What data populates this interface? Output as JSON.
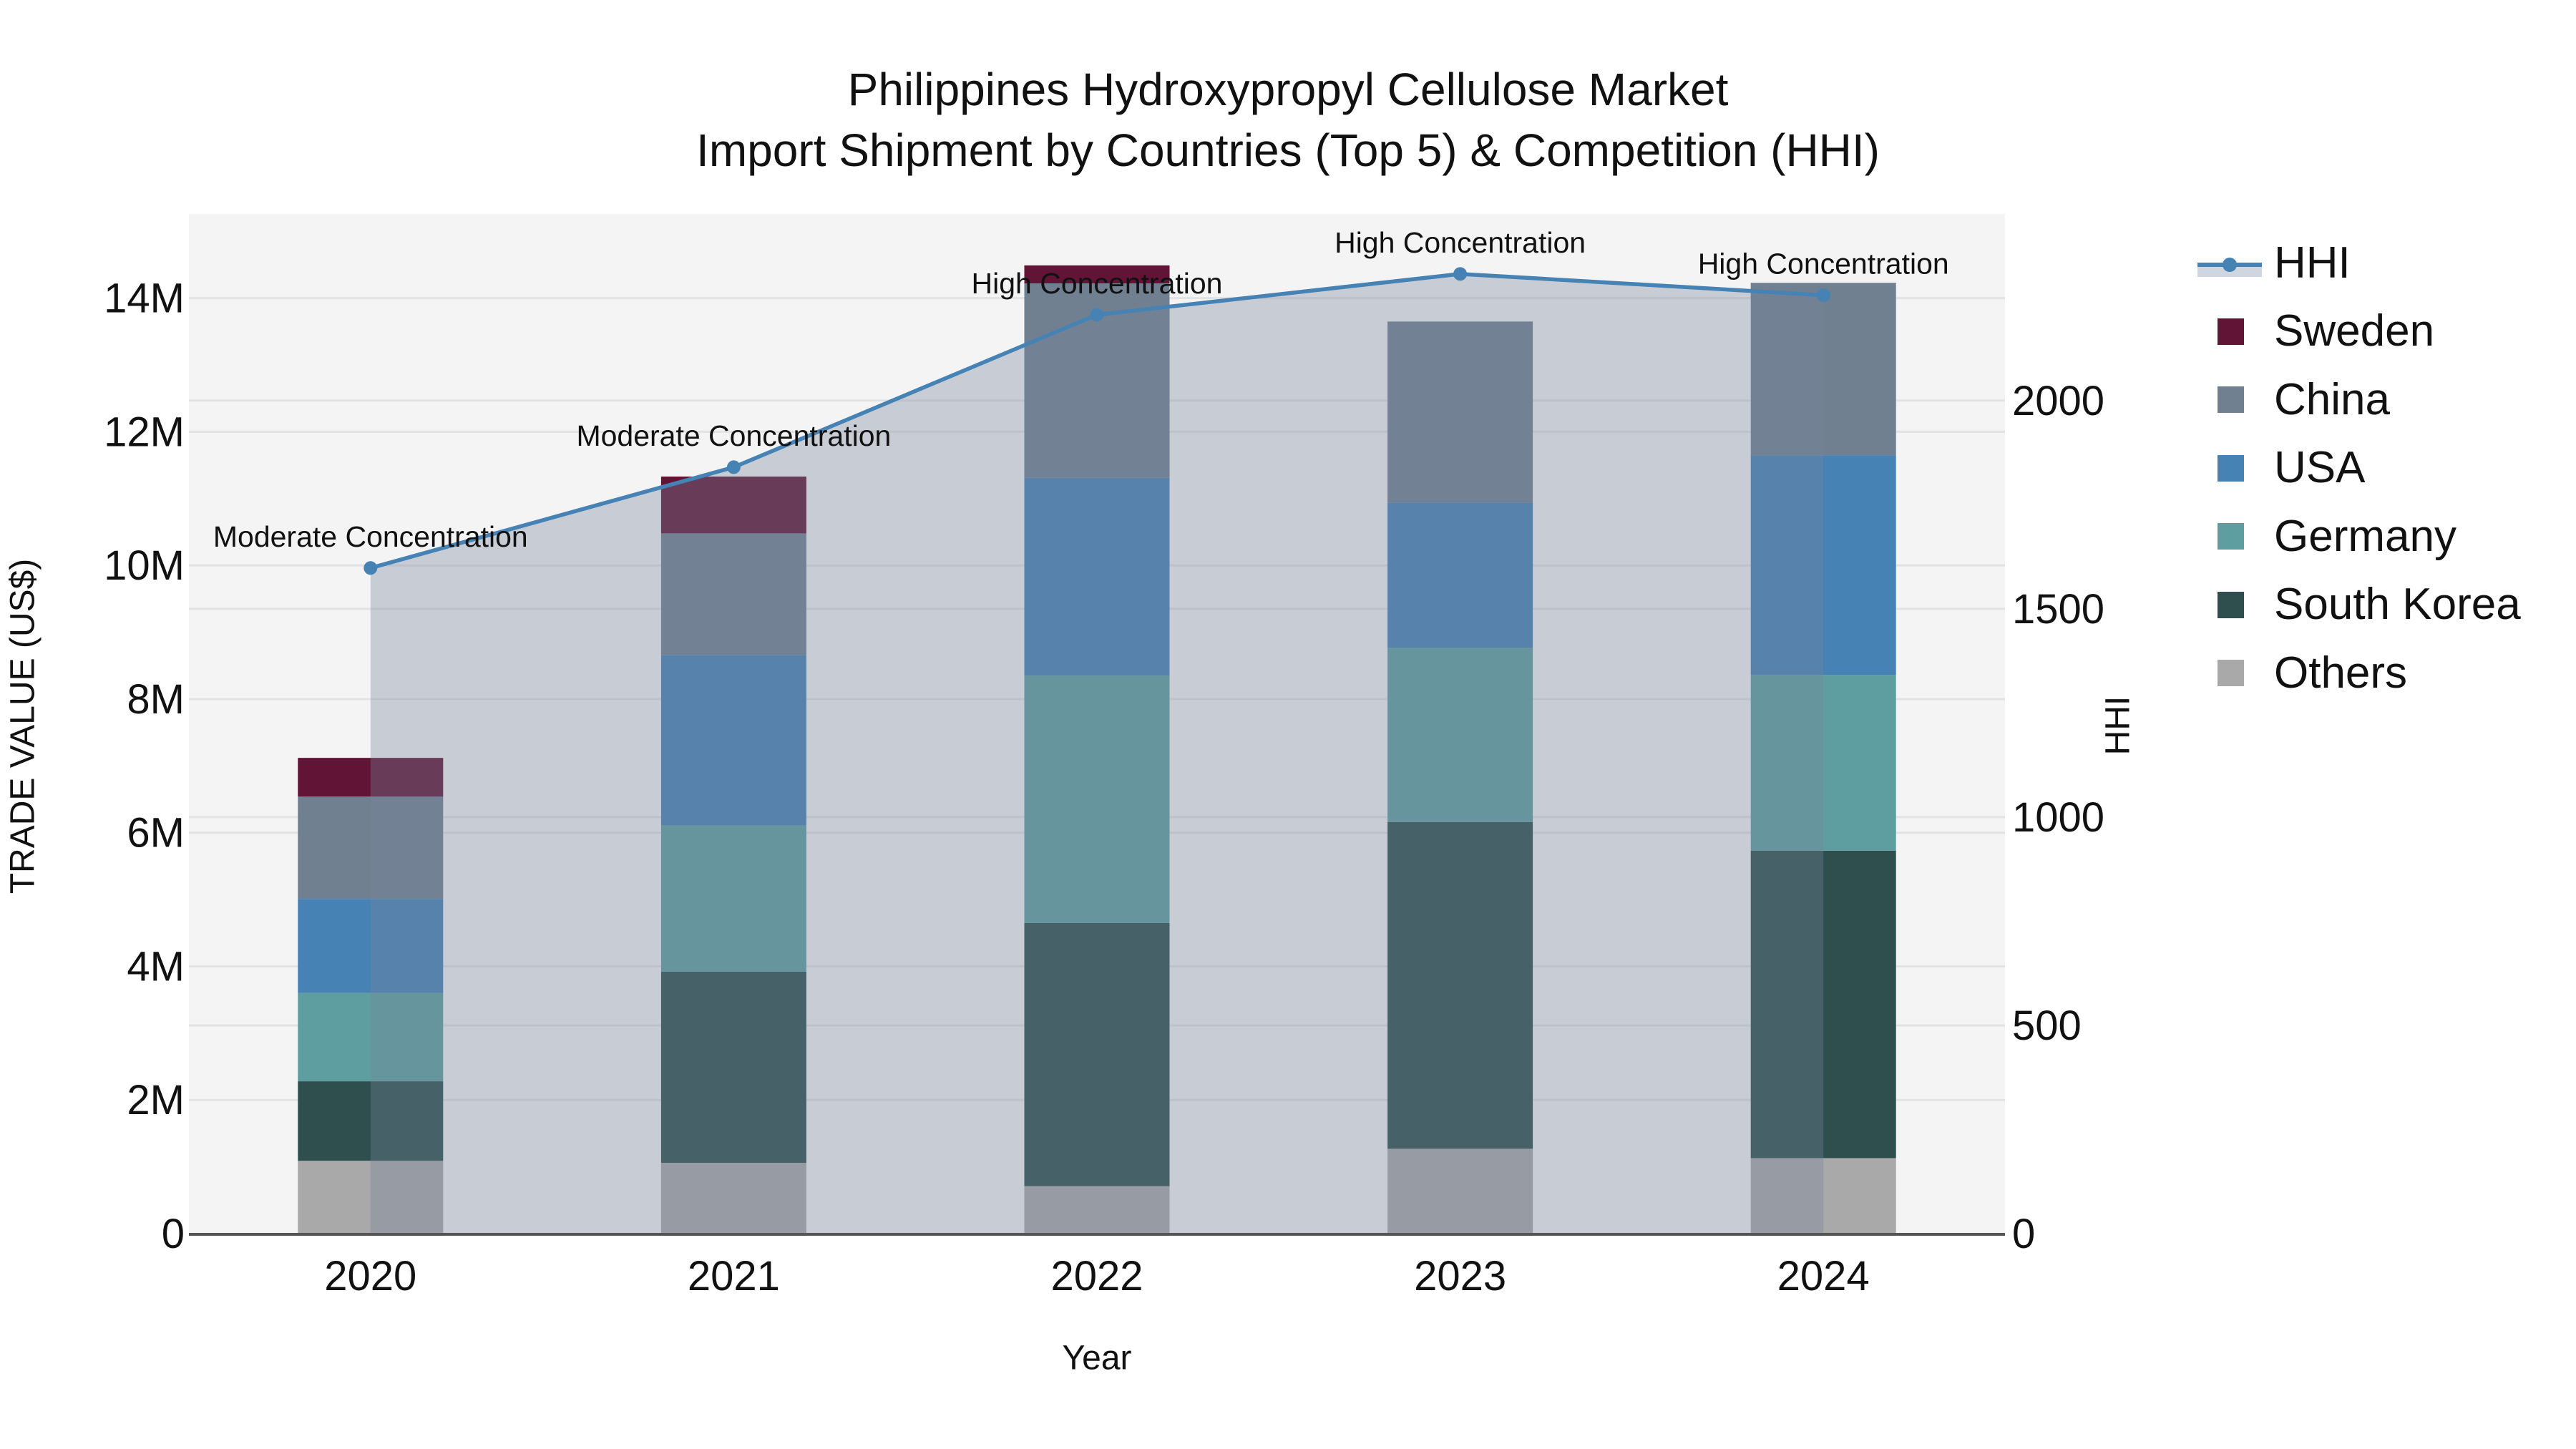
{
  "title": {
    "line1": "Philippines Hydroxypropyl Cellulose Market",
    "line2": "Import Shipment by Countries (Top 5) & Competition (HHI)"
  },
  "axes": {
    "x_title": "Year",
    "y_left_title": "TRADE VALUE (US$)",
    "y_right_title": "HHI"
  },
  "legend": {
    "items": [
      {
        "label": "HHI",
        "type": "line-area",
        "color": "#4682B4"
      },
      {
        "label": "Sweden",
        "type": "bar",
        "color": "#611436"
      },
      {
        "label": "China",
        "type": "bar",
        "color": "#708090"
      },
      {
        "label": "USA",
        "type": "bar",
        "color": "#4682B4"
      },
      {
        "label": "Germany",
        "type": "bar",
        "color": "#5F9EA0"
      },
      {
        "label": "South Korea",
        "type": "bar",
        "color": "#2F4F4F"
      },
      {
        "label": "Others",
        "type": "bar",
        "color": "#A9A9A9"
      }
    ]
  },
  "colors": {
    "plot_bg": "#F4F4F4",
    "grid": "#E3E3E3",
    "hhi_line": "#4682B4",
    "hhi_area": "rgba(117,132,155,0.35)",
    "axis_line": "#555555"
  },
  "chart_data": {
    "type": "bar",
    "subtype": "stacked bar + line/area (secondary axis)",
    "title": "Philippines Hydroxypropyl Cellulose Market\nImport Shipment by Countries (Top 5) & Competition (HHI)",
    "xlabel": "Year",
    "ylabel": "TRADE VALUE (US$)",
    "y2label": "HHI",
    "categories": [
      "2020",
      "2021",
      "2022",
      "2023",
      "2024"
    ],
    "ylim": [
      0,
      15260000
    ],
    "y2lim": [
      0,
      2448
    ],
    "yticks": [
      {
        "value": 0,
        "label": "0"
      },
      {
        "value": 2000000,
        "label": "2M"
      },
      {
        "value": 4000000,
        "label": "4M"
      },
      {
        "value": 6000000,
        "label": "6M"
      },
      {
        "value": 8000000,
        "label": "8M"
      },
      {
        "value": 10000000,
        "label": "10M"
      },
      {
        "value": 12000000,
        "label": "12M"
      },
      {
        "value": 14000000,
        "label": "14M"
      }
    ],
    "y2ticks": [
      {
        "value": 0,
        "label": "0"
      },
      {
        "value": 500,
        "label": "500"
      },
      {
        "value": 1000,
        "label": "1000"
      },
      {
        "value": 1500,
        "label": "1500"
      },
      {
        "value": 2000,
        "label": "2000"
      }
    ],
    "grid": true,
    "legend_position": "right",
    "stack_order_bottom_to_top": [
      "Others",
      "South Korea",
      "Germany",
      "USA",
      "China",
      "Sweden"
    ],
    "series": [
      {
        "name": "Others",
        "color": "#A9A9A9",
        "values": [
          1090000,
          1060000,
          710000,
          1270000,
          1130000
        ]
      },
      {
        "name": "South Korea",
        "color": "#2F4F4F",
        "values": [
          1190000,
          2860000,
          3940000,
          4890000,
          4600000
        ]
      },
      {
        "name": "Germany",
        "color": "#5F9EA0",
        "values": [
          1320000,
          2190000,
          3700000,
          2610000,
          2630000
        ]
      },
      {
        "name": "USA",
        "color": "#4682B4",
        "values": [
          1410000,
          2550000,
          2960000,
          2170000,
          3290000
        ]
      },
      {
        "name": "China",
        "color": "#708090",
        "values": [
          1530000,
          1820000,
          2910000,
          2710000,
          2580000
        ]
      },
      {
        "name": "Sweden",
        "color": "#611436",
        "values": [
          580000,
          850000,
          270000,
          0,
          0
        ]
      }
    ],
    "totals": [
      7120000,
      11330000,
      14490000,
      13650000,
      14230000
    ],
    "hhi": {
      "name": "HHI",
      "axis": "right",
      "values": [
        1598,
        1840,
        2206,
        2304,
        2253
      ],
      "annotations": [
        "Moderate Concentration",
        "Moderate Concentration",
        "High Concentration",
        "High Concentration",
        "High Concentration"
      ]
    }
  }
}
